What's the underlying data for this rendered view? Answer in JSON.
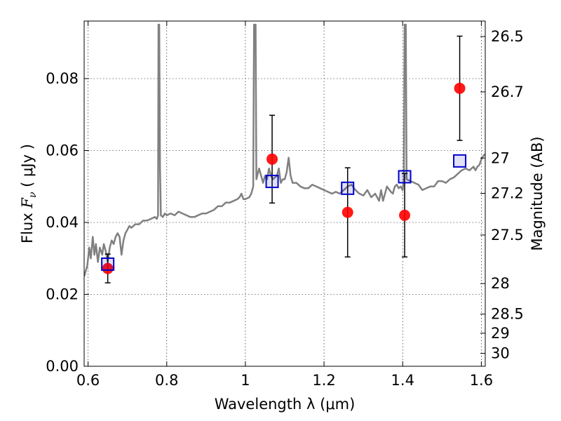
{
  "chart_data": {
    "type": "scatter",
    "title": "",
    "xlabel": "Wavelength  λ (μm)",
    "ylabel_left": {
      "pre": "Flux  ",
      "var": "F",
      "sub": "ν",
      "post": " ( μJy )"
    },
    "ylabel_right": "Magnitude (AB)",
    "xlim": [
      0.59,
      1.61
    ],
    "ylim": [
      0.0,
      0.096
    ],
    "x_ticks": [
      0.6,
      0.8,
      1.0,
      1.2,
      1.4,
      1.6
    ],
    "x_tick_labels": [
      "0.6",
      "0.8",
      "1",
      "1.2",
      "1.4",
      "1.6"
    ],
    "y_ticks": [
      0.0,
      0.02,
      0.04,
      0.06,
      0.08
    ],
    "y_tick_labels": [
      "0.00",
      "0.02",
      "0.04",
      "0.06",
      "0.08"
    ],
    "right_ticks": [
      {
        "label": "26.5",
        "flux": 0.0917
      },
      {
        "label": "26.7",
        "flux": 0.0763
      },
      {
        "label": "27",
        "flux": 0.0579
      },
      {
        "label": "27.2",
        "flux": 0.0481
      },
      {
        "label": "27.5",
        "flux": 0.0365
      },
      {
        "label": "28",
        "flux": 0.023
      },
      {
        "label": "28.5",
        "flux": 0.0145
      },
      {
        "label": "29",
        "flux": 0.0092
      },
      {
        "label": "30",
        "flux": 0.0036
      }
    ],
    "grid": true,
    "observed": {
      "color": "#ff0000",
      "points": [
        {
          "x": 0.65,
          "y": 0.0272,
          "err": 0.004
        },
        {
          "x": 1.068,
          "y": 0.0576,
          "err": 0.0122
        },
        {
          "x": 1.26,
          "y": 0.0428,
          "err": 0.0124
        },
        {
          "x": 1.405,
          "y": 0.042,
          "err": 0.0116
        },
        {
          "x": 1.545,
          "y": 0.0773,
          "err": 0.0145
        }
      ]
    },
    "model_photometry": {
      "color": "#0000cc",
      "points": [
        {
          "x": 0.65,
          "y": 0.0284
        },
        {
          "x": 1.068,
          "y": 0.0514
        },
        {
          "x": 1.26,
          "y": 0.0495
        },
        {
          "x": 1.405,
          "y": 0.0527
        },
        {
          "x": 1.545,
          "y": 0.0571
        }
      ]
    },
    "spectrum": {
      "color": "#808080",
      "points": [
        [
          0.59,
          0.025
        ],
        [
          0.598,
          0.028
        ],
        [
          0.603,
          0.033
        ],
        [
          0.607,
          0.03
        ],
        [
          0.612,
          0.036
        ],
        [
          0.616,
          0.031
        ],
        [
          0.62,
          0.034
        ],
        [
          0.625,
          0.029
        ],
        [
          0.63,
          0.033
        ],
        [
          0.636,
          0.031
        ],
        [
          0.64,
          0.034
        ],
        [
          0.645,
          0.032
        ],
        [
          0.65,
          0.029
        ],
        [
          0.655,
          0.033
        ],
        [
          0.66,
          0.035
        ],
        [
          0.665,
          0.034
        ],
        [
          0.67,
          0.036
        ],
        [
          0.675,
          0.037
        ],
        [
          0.68,
          0.036
        ],
        [
          0.685,
          0.031
        ],
        [
          0.69,
          0.035
        ],
        [
          0.695,
          0.037
        ],
        [
          0.7,
          0.038
        ],
        [
          0.705,
          0.039
        ],
        [
          0.71,
          0.0385
        ],
        [
          0.72,
          0.0395
        ],
        [
          0.73,
          0.0395
        ],
        [
          0.74,
          0.0405
        ],
        [
          0.75,
          0.0405
        ],
        [
          0.76,
          0.041
        ],
        [
          0.77,
          0.0415
        ],
        [
          0.775,
          0.041
        ],
        [
          0.778,
          0.042
        ],
        [
          0.779,
          0.095
        ],
        [
          0.781,
          0.095
        ],
        [
          0.783,
          0.055
        ],
        [
          0.785,
          0.042
        ],
        [
          0.79,
          0.0415
        ],
        [
          0.795,
          0.0425
        ],
        [
          0.8,
          0.042
        ],
        [
          0.81,
          0.0425
        ],
        [
          0.82,
          0.042
        ],
        [
          0.83,
          0.043
        ],
        [
          0.84,
          0.0425
        ],
        [
          0.85,
          0.042
        ],
        [
          0.86,
          0.0415
        ],
        [
          0.87,
          0.0415
        ],
        [
          0.88,
          0.042
        ],
        [
          0.89,
          0.0425
        ],
        [
          0.9,
          0.0425
        ],
        [
          0.91,
          0.043
        ],
        [
          0.92,
          0.0435
        ],
        [
          0.93,
          0.0445
        ],
        [
          0.94,
          0.0445
        ],
        [
          0.95,
          0.0455
        ],
        [
          0.96,
          0.0455
        ],
        [
          0.97,
          0.046
        ],
        [
          0.98,
          0.0465
        ],
        [
          0.985,
          0.047
        ],
        [
          0.99,
          0.048
        ],
        [
          0.995,
          0.0465
        ],
        [
          1.0,
          0.0465
        ],
        [
          1.01,
          0.047
        ],
        [
          1.015,
          0.048
        ],
        [
          1.02,
          0.05
        ],
        [
          1.022,
          0.095
        ],
        [
          1.026,
          0.095
        ],
        [
          1.028,
          0.052
        ],
        [
          1.035,
          0.055
        ],
        [
          1.045,
          0.051
        ],
        [
          1.05,
          0.053
        ],
        [
          1.055,
          0.052
        ],
        [
          1.06,
          0.055
        ],
        [
          1.065,
          0.053
        ],
        [
          1.07,
          0.052
        ],
        [
          1.08,
          0.053
        ],
        [
          1.085,
          0.055
        ],
        [
          1.09,
          0.051
        ],
        [
          1.095,
          0.052
        ],
        [
          1.1,
          0.052
        ],
        [
          1.105,
          0.054
        ],
        [
          1.11,
          0.058
        ],
        [
          1.115,
          0.053
        ],
        [
          1.12,
          0.051
        ],
        [
          1.13,
          0.051
        ],
        [
          1.14,
          0.05
        ],
        [
          1.15,
          0.0495
        ],
        [
          1.16,
          0.0495
        ],
        [
          1.17,
          0.0505
        ],
        [
          1.18,
          0.05
        ],
        [
          1.19,
          0.0495
        ],
        [
          1.2,
          0.049
        ],
        [
          1.21,
          0.0485
        ],
        [
          1.22,
          0.048
        ],
        [
          1.23,
          0.0485
        ],
        [
          1.24,
          0.048
        ],
        [
          1.25,
          0.049
        ],
        [
          1.26,
          0.05
        ],
        [
          1.27,
          0.0505
        ],
        [
          1.28,
          0.049
        ],
        [
          1.29,
          0.048
        ],
        [
          1.3,
          0.0475
        ],
        [
          1.31,
          0.049
        ],
        [
          1.32,
          0.047
        ],
        [
          1.33,
          0.048
        ],
        [
          1.34,
          0.046
        ],
        [
          1.345,
          0.049
        ],
        [
          1.35,
          0.046
        ],
        [
          1.36,
          0.05
        ],
        [
          1.37,
          0.0485
        ],
        [
          1.375,
          0.048
        ],
        [
          1.38,
          0.05
        ],
        [
          1.385,
          0.0505
        ],
        [
          1.39,
          0.0495
        ],
        [
          1.395,
          0.05
        ],
        [
          1.4,
          0.049
        ],
        [
          1.403,
          0.052
        ],
        [
          1.405,
          0.095
        ],
        [
          1.408,
          0.095
        ],
        [
          1.41,
          0.052
        ],
        [
          1.42,
          0.0515
        ],
        [
          1.43,
          0.051
        ],
        [
          1.44,
          0.0505
        ],
        [
          1.45,
          0.049
        ],
        [
          1.46,
          0.0495
        ],
        [
          1.47,
          0.05
        ],
        [
          1.48,
          0.05
        ],
        [
          1.49,
          0.0515
        ],
        [
          1.5,
          0.0515
        ],
        [
          1.51,
          0.051
        ],
        [
          1.52,
          0.052
        ],
        [
          1.53,
          0.0525
        ],
        [
          1.54,
          0.0535
        ],
        [
          1.55,
          0.0545
        ],
        [
          1.56,
          0.055
        ],
        [
          1.57,
          0.0545
        ],
        [
          1.58,
          0.0555
        ],
        [
          1.585,
          0.0545
        ],
        [
          1.59,
          0.0555
        ],
        [
          1.595,
          0.056
        ],
        [
          1.6,
          0.0575
        ],
        [
          1.605,
          0.0585
        ],
        [
          1.61,
          0.059
        ]
      ]
    }
  }
}
